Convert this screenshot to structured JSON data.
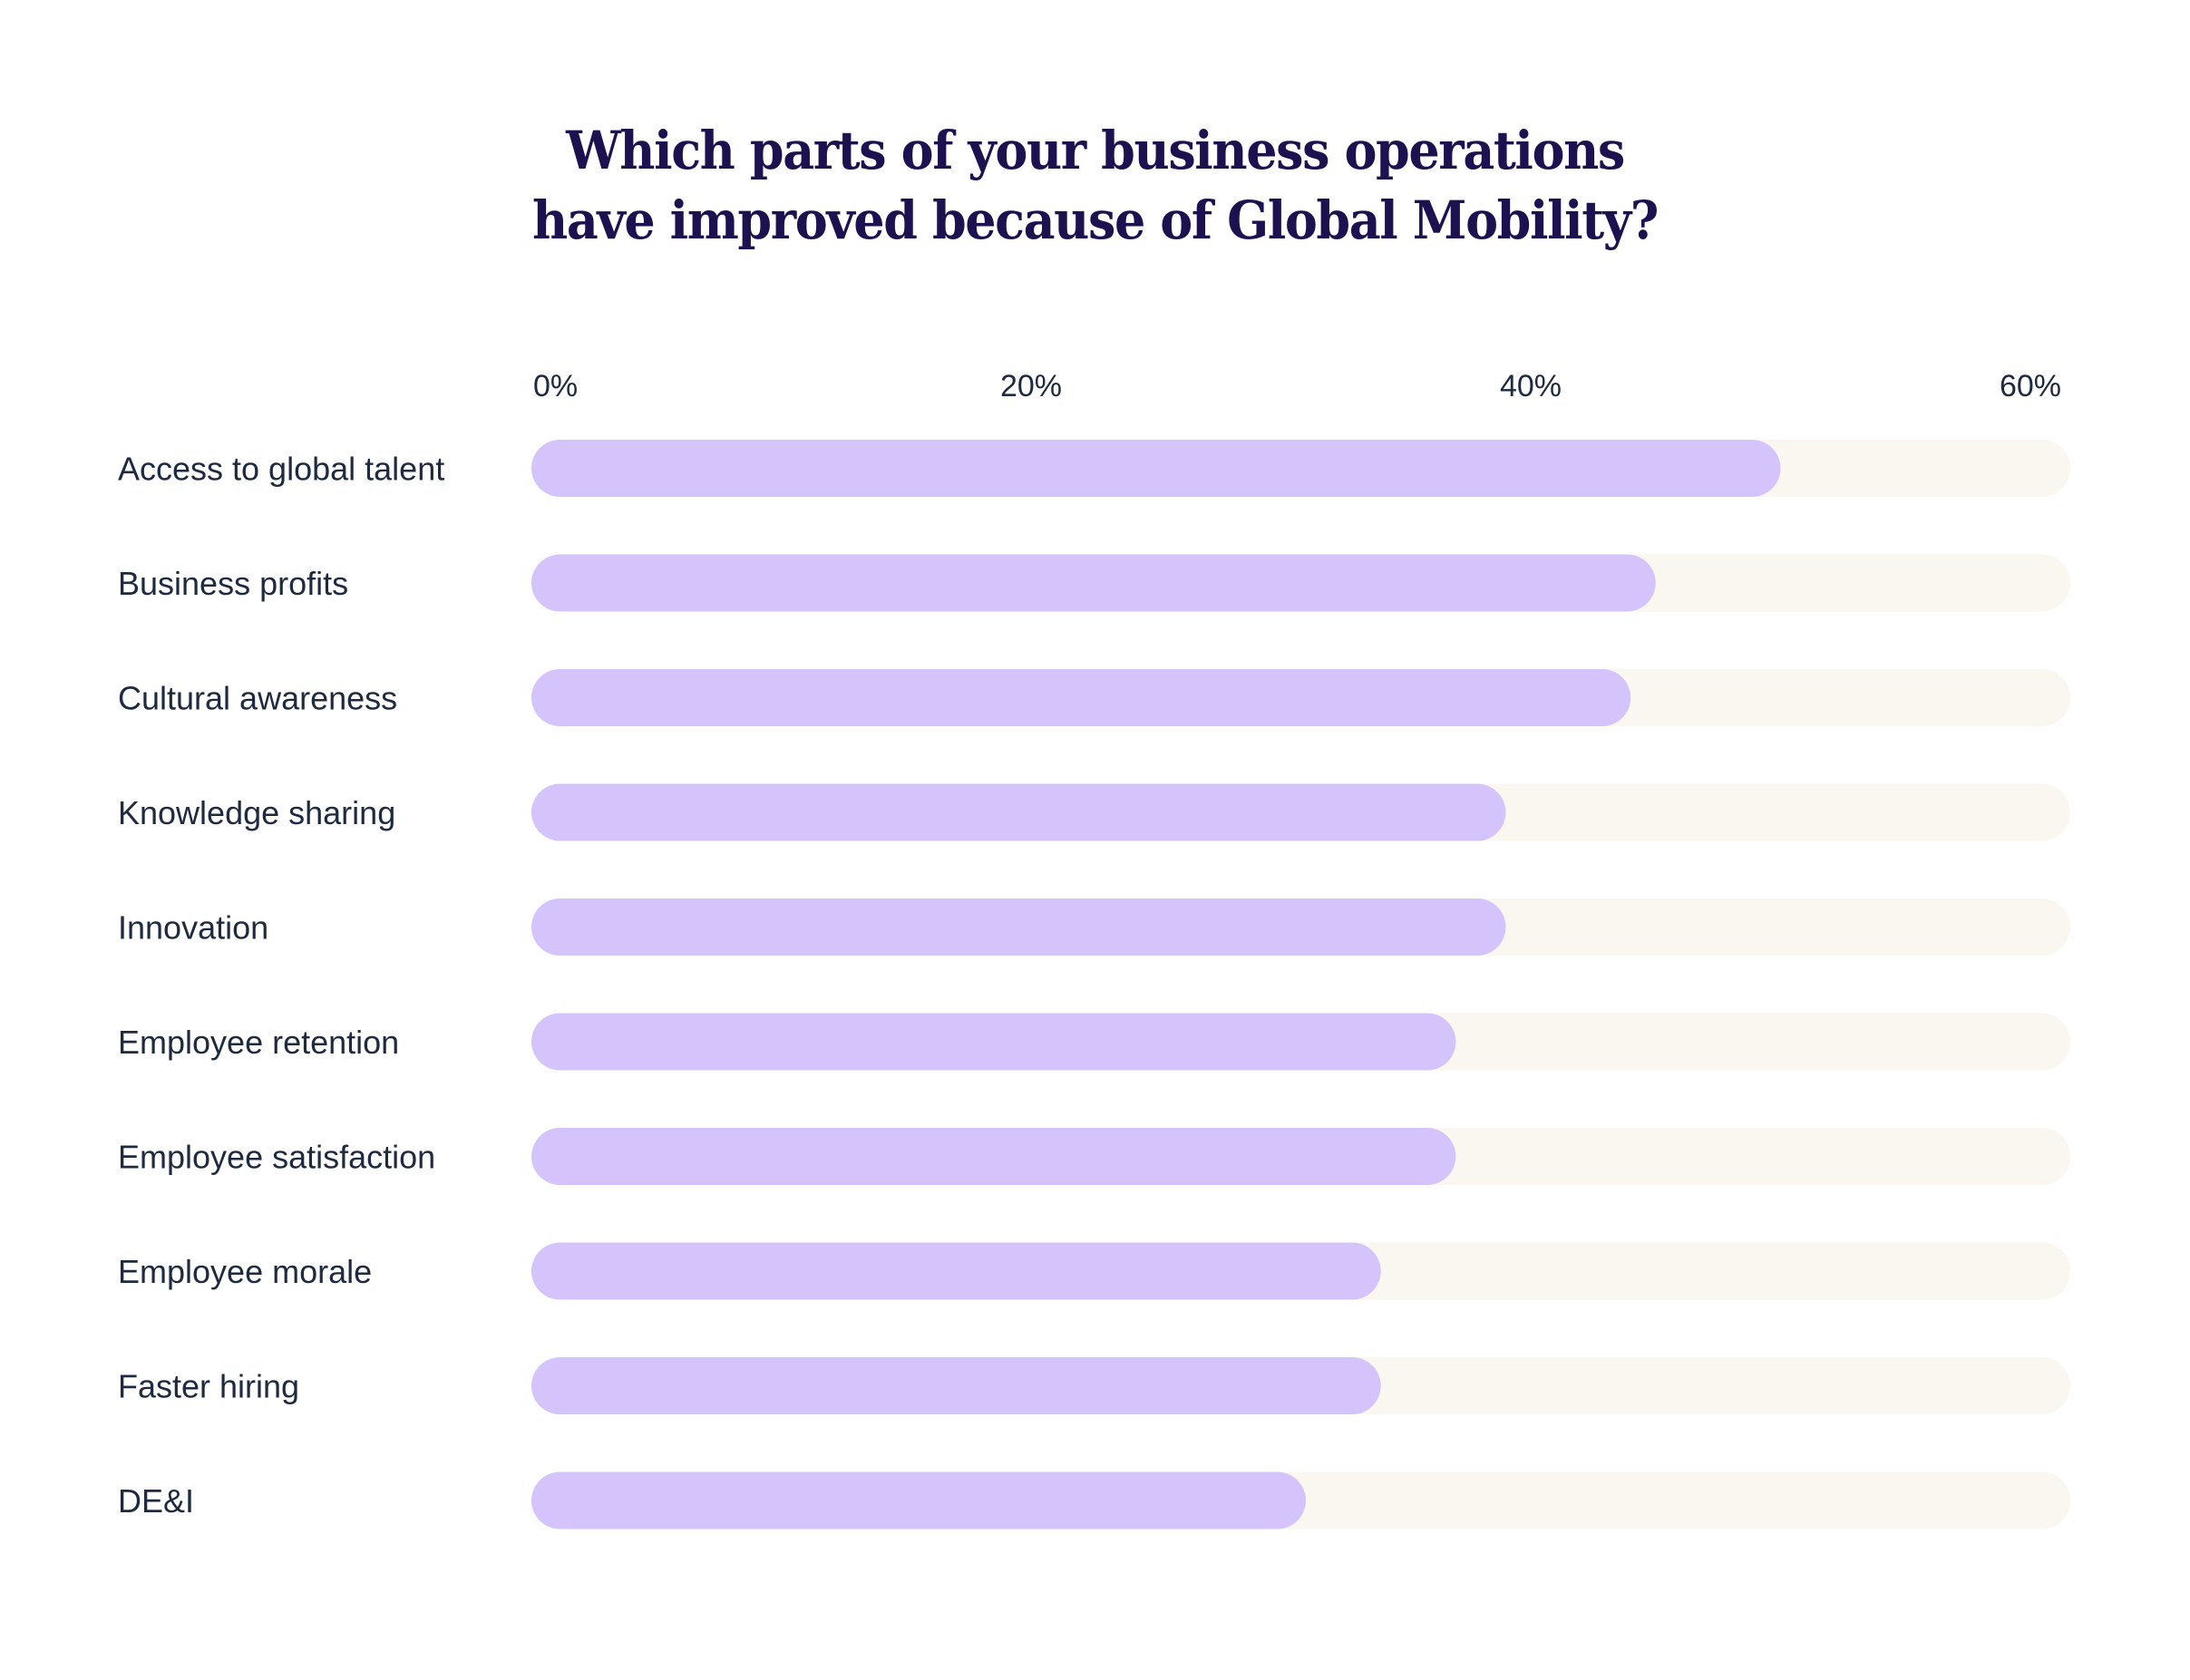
{
  "chart_data": {
    "type": "bar",
    "orientation": "horizontal",
    "title": "Which parts of your business operations have improved because of Global Mobility?",
    "title_lines": [
      "Which parts of your business operations",
      "have improved because of Global Mobility?"
    ],
    "xlabel": "",
    "ylabel": "",
    "categories": [
      "Access to global talent",
      "Business profits",
      "Cultural awareness",
      "Knowledge sharing",
      "Innovation",
      "Employee retention",
      "Employee satisfaction",
      "Employee morale",
      "Faster hiring",
      "DE&I"
    ],
    "values": [
      50,
      45,
      44,
      39,
      39,
      37,
      37,
      34,
      34,
      31
    ],
    "unit": "%",
    "xlim": [
      0,
      61.6
    ],
    "x_ticks": [
      0,
      20,
      40,
      60
    ],
    "x_tick_labels": [
      "0%",
      "20%",
      "40%",
      "60%"
    ],
    "x_axis_position": "top",
    "grid": false,
    "legend": "none",
    "colors": {
      "bar_fill": "#d5c3fc",
      "track": "#f9f7f0",
      "title": "#1e1150",
      "text": "#1e2a3f"
    }
  }
}
